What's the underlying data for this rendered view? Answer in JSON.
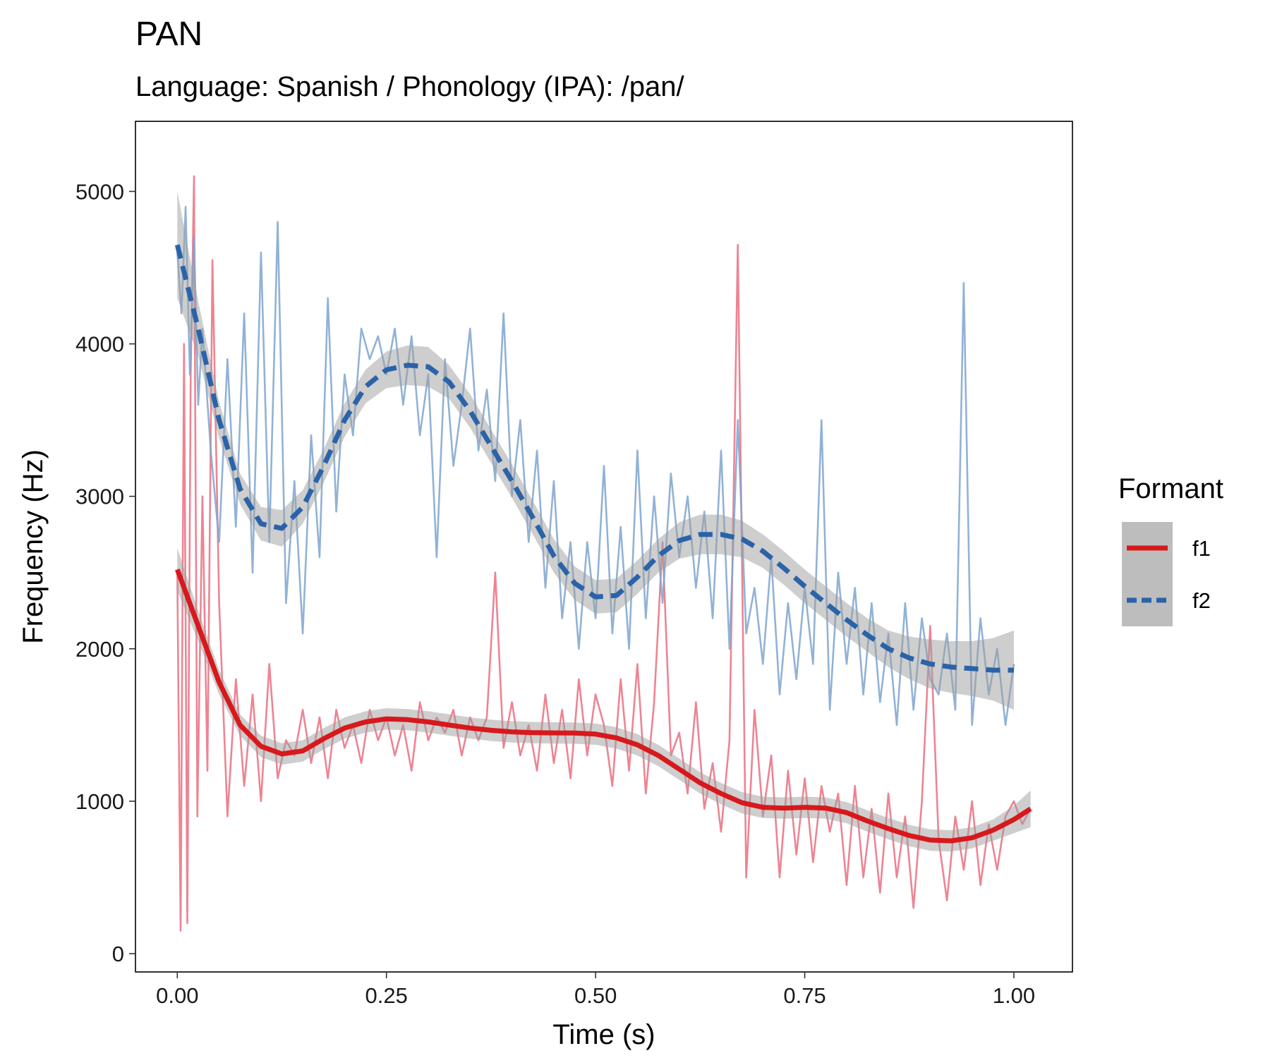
{
  "chart_data": {
    "type": "line",
    "title": "PAN",
    "subtitle": "Language: Spanish / Phonology (IPA): /pan/",
    "xlabel": "Time (s)",
    "ylabel": "Frequency (Hz)",
    "xlim": [
      -0.05,
      1.07
    ],
    "ylim": [
      -120,
      5460
    ],
    "x_ticks": [
      0.0,
      0.25,
      0.5,
      0.75,
      1.0
    ],
    "x_tick_labels": [
      "0.00",
      "0.25",
      "0.50",
      "0.75",
      "1.00"
    ],
    "y_ticks": [
      0,
      1000,
      2000,
      3000,
      4000,
      5000
    ],
    "y_tick_labels": [
      "0",
      "1000",
      "2000",
      "3000",
      "4000",
      "5000"
    ],
    "grid": false,
    "legend": {
      "title": "Formant",
      "position": "right",
      "entries": [
        {
          "label": "f1",
          "color": "#d7191c",
          "linestyle": "solid"
        },
        {
          "label": "f2",
          "color": "#2b63a8",
          "linestyle": "dashed"
        }
      ]
    },
    "series": [
      {
        "name": "f1",
        "kind": "raw",
        "color": "#ea6f80",
        "x": [
          0.0,
          0.004,
          0.008,
          0.012,
          0.016,
          0.02,
          0.024,
          0.03,
          0.036,
          0.042,
          0.05,
          0.06,
          0.07,
          0.08,
          0.09,
          0.1,
          0.11,
          0.12,
          0.13,
          0.14,
          0.15,
          0.16,
          0.17,
          0.18,
          0.19,
          0.2,
          0.21,
          0.22,
          0.23,
          0.24,
          0.25,
          0.26,
          0.27,
          0.28,
          0.29,
          0.3,
          0.31,
          0.32,
          0.33,
          0.34,
          0.35,
          0.36,
          0.37,
          0.38,
          0.39,
          0.4,
          0.41,
          0.42,
          0.43,
          0.44,
          0.45,
          0.46,
          0.47,
          0.48,
          0.49,
          0.5,
          0.51,
          0.52,
          0.53,
          0.54,
          0.55,
          0.56,
          0.57,
          0.58,
          0.59,
          0.6,
          0.61,
          0.62,
          0.63,
          0.64,
          0.65,
          0.66,
          0.67,
          0.68,
          0.69,
          0.7,
          0.71,
          0.72,
          0.73,
          0.74,
          0.75,
          0.76,
          0.77,
          0.78,
          0.79,
          0.8,
          0.81,
          0.82,
          0.83,
          0.84,
          0.85,
          0.86,
          0.87,
          0.88,
          0.89,
          0.9,
          0.91,
          0.92,
          0.93,
          0.94,
          0.95,
          0.96,
          0.97,
          0.98,
          0.99,
          1.0,
          1.01,
          1.02
        ],
        "y": [
          2500,
          150,
          4000,
          200,
          3800,
          5100,
          900,
          3000,
          1200,
          4550,
          2300,
          900,
          1800,
          1100,
          1700,
          1000,
          1900,
          1150,
          1400,
          1300,
          1600,
          1250,
          1550,
          1150,
          1600,
          1350,
          1500,
          1250,
          1600,
          1400,
          1550,
          1300,
          1500,
          1200,
          1650,
          1400,
          1550,
          1450,
          1600,
          1300,
          1550,
          1400,
          1550,
          2500,
          1350,
          1650,
          1300,
          1500,
          1200,
          1700,
          1250,
          1600,
          1150,
          1800,
          1300,
          1700,
          1500,
          1100,
          1800,
          1200,
          1900,
          1050,
          1650,
          2700,
          1300,
          1450,
          1050,
          1650,
          950,
          1250,
          800,
          1400,
          4650,
          500,
          1600,
          900,
          1300,
          500,
          1200,
          650,
          1150,
          600,
          1100,
          800,
          1050,
          450,
          1100,
          500,
          950,
          400,
          1050,
          500,
          900,
          300,
          1000,
          2150,
          750,
          350,
          900,
          550,
          1000,
          450,
          850,
          550,
          900,
          1000,
          850,
          950
        ]
      },
      {
        "name": "f2",
        "kind": "raw",
        "color": "#7ea4cf",
        "x": [
          0.0,
          0.005,
          0.01,
          0.015,
          0.02,
          0.025,
          0.03,
          0.04,
          0.05,
          0.06,
          0.07,
          0.08,
          0.09,
          0.1,
          0.11,
          0.12,
          0.13,
          0.14,
          0.15,
          0.16,
          0.17,
          0.18,
          0.19,
          0.2,
          0.21,
          0.22,
          0.23,
          0.24,
          0.25,
          0.26,
          0.27,
          0.28,
          0.29,
          0.3,
          0.31,
          0.32,
          0.33,
          0.34,
          0.35,
          0.36,
          0.37,
          0.38,
          0.39,
          0.4,
          0.41,
          0.42,
          0.43,
          0.44,
          0.45,
          0.46,
          0.47,
          0.48,
          0.49,
          0.5,
          0.51,
          0.52,
          0.53,
          0.54,
          0.55,
          0.56,
          0.57,
          0.58,
          0.59,
          0.6,
          0.61,
          0.62,
          0.63,
          0.64,
          0.65,
          0.66,
          0.67,
          0.68,
          0.69,
          0.7,
          0.71,
          0.72,
          0.73,
          0.74,
          0.75,
          0.76,
          0.77,
          0.78,
          0.79,
          0.8,
          0.81,
          0.82,
          0.83,
          0.84,
          0.85,
          0.86,
          0.87,
          0.88,
          0.89,
          0.9,
          0.91,
          0.92,
          0.93,
          0.94,
          0.95,
          0.96,
          0.97,
          0.98,
          0.99,
          1.0
        ],
        "y": [
          4600,
          4200,
          4900,
          3800,
          4700,
          3600,
          4100,
          3300,
          2700,
          3900,
          2800,
          4200,
          2500,
          4600,
          2700,
          4800,
          2300,
          3100,
          2100,
          3400,
          2600,
          4300,
          2900,
          3800,
          3400,
          4100,
          3900,
          4050,
          3800,
          4100,
          3600,
          4050,
          3400,
          3800,
          2600,
          3900,
          3200,
          3600,
          4100,
          3300,
          3700,
          3100,
          4200,
          3000,
          3500,
          2700,
          3300,
          2400,
          3100,
          2200,
          2700,
          2000,
          2700,
          2200,
          3200,
          2100,
          2800,
          2000,
          3300,
          2200,
          3000,
          2300,
          3150,
          2600,
          3000,
          2400,
          2900,
          2200,
          3300,
          2000,
          3500,
          2100,
          2400,
          1900,
          2600,
          1700,
          2300,
          1800,
          2400,
          1900,
          3500,
          1600,
          2500,
          1900,
          2400,
          1700,
          2300,
          1650,
          2100,
          1500,
          2300,
          1600,
          2200,
          1800,
          1700,
          2100,
          1600,
          4400,
          1500,
          2200,
          1700,
          2000,
          1500,
          1900
        ]
      },
      {
        "name": "f1",
        "kind": "smooth",
        "color": "#d7191c",
        "linestyle": "solid",
        "x": [
          0.0,
          0.025,
          0.05,
          0.075,
          0.1,
          0.125,
          0.15,
          0.175,
          0.2,
          0.225,
          0.25,
          0.275,
          0.3,
          0.325,
          0.35,
          0.375,
          0.4,
          0.425,
          0.45,
          0.475,
          0.5,
          0.525,
          0.55,
          0.575,
          0.6,
          0.625,
          0.65,
          0.675,
          0.7,
          0.725,
          0.75,
          0.775,
          0.8,
          0.825,
          0.85,
          0.875,
          0.9,
          0.925,
          0.95,
          0.975,
          1.0,
          1.02
        ],
        "y": [
          2520,
          2150,
          1780,
          1500,
          1360,
          1310,
          1330,
          1410,
          1480,
          1520,
          1540,
          1535,
          1520,
          1500,
          1480,
          1465,
          1455,
          1450,
          1448,
          1447,
          1440,
          1415,
          1370,
          1300,
          1210,
          1120,
          1050,
          990,
          960,
          955,
          960,
          955,
          925,
          870,
          820,
          775,
          745,
          740,
          760,
          810,
          880,
          950
        ],
        "band_lower": [
          2380,
          2050,
          1700,
          1430,
          1290,
          1240,
          1260,
          1340,
          1410,
          1450,
          1470,
          1465,
          1450,
          1430,
          1410,
          1395,
          1385,
          1380,
          1378,
          1377,
          1370,
          1345,
          1300,
          1230,
          1140,
          1050,
          980,
          920,
          890,
          885,
          890,
          885,
          855,
          800,
          750,
          705,
          675,
          670,
          690,
          740,
          790,
          830
        ],
        "band_upper": [
          2660,
          2250,
          1860,
          1570,
          1430,
          1380,
          1400,
          1480,
          1550,
          1590,
          1610,
          1605,
          1590,
          1570,
          1550,
          1535,
          1525,
          1520,
          1518,
          1517,
          1510,
          1485,
          1440,
          1370,
          1280,
          1190,
          1120,
          1060,
          1030,
          1025,
          1030,
          1025,
          995,
          940,
          890,
          845,
          815,
          810,
          830,
          880,
          970,
          1070
        ]
      },
      {
        "name": "f2",
        "kind": "smooth",
        "color": "#2b63a8",
        "linestyle": "dashed",
        "x": [
          0.0,
          0.025,
          0.05,
          0.075,
          0.1,
          0.125,
          0.15,
          0.175,
          0.2,
          0.225,
          0.25,
          0.275,
          0.3,
          0.325,
          0.35,
          0.375,
          0.4,
          0.425,
          0.45,
          0.475,
          0.5,
          0.525,
          0.55,
          0.575,
          0.6,
          0.625,
          0.65,
          0.675,
          0.7,
          0.725,
          0.75,
          0.775,
          0.8,
          0.825,
          0.85,
          0.875,
          0.9,
          0.925,
          0.95,
          0.975,
          1.0
        ],
        "y": [
          4650,
          4100,
          3500,
          3050,
          2820,
          2790,
          2930,
          3200,
          3500,
          3720,
          3830,
          3860,
          3850,
          3750,
          3560,
          3330,
          3100,
          2860,
          2610,
          2430,
          2340,
          2350,
          2470,
          2610,
          2710,
          2750,
          2750,
          2720,
          2640,
          2530,
          2410,
          2300,
          2190,
          2090,
          2000,
          1940,
          1900,
          1880,
          1870,
          1860,
          1860
        ],
        "band_lower": [
          4300,
          3920,
          3380,
          2950,
          2710,
          2670,
          2820,
          3090,
          3390,
          3610,
          3710,
          3730,
          3720,
          3640,
          3450,
          3220,
          2990,
          2750,
          2500,
          2320,
          2230,
          2240,
          2360,
          2500,
          2590,
          2620,
          2620,
          2600,
          2530,
          2420,
          2300,
          2190,
          2080,
          1980,
          1880,
          1800,
          1740,
          1710,
          1690,
          1660,
          1600
        ],
        "band_upper": [
          5000,
          4280,
          3620,
          3150,
          2930,
          2910,
          3040,
          3310,
          3610,
          3830,
          3950,
          3990,
          3980,
          3860,
          3670,
          3440,
          3210,
          2970,
          2720,
          2540,
          2450,
          2460,
          2580,
          2720,
          2830,
          2880,
          2880,
          2840,
          2750,
          2640,
          2520,
          2410,
          2300,
          2200,
          2120,
          2080,
          2060,
          2050,
          2050,
          2070,
          2120
        ]
      }
    ]
  }
}
